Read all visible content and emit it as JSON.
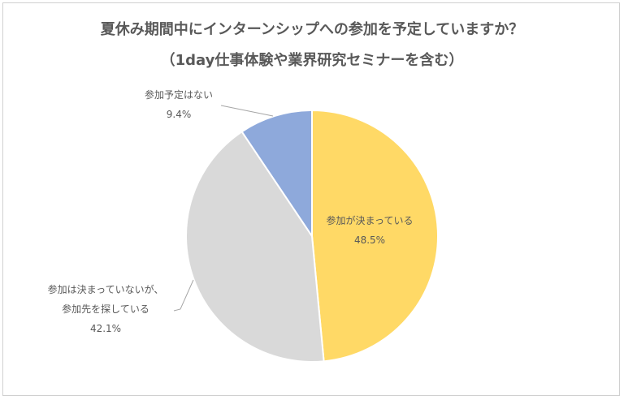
{
  "chart_data": {
    "type": "pie",
    "title": "夏休み期間中にインターンシップへの参加を予定していますか？",
    "subtitle": "（1day仕事体験や業界研究セミナーを含む）",
    "start": "top",
    "direction": "clockwise",
    "slices": [
      {
        "label": "参加が決まっている",
        "label_lines": [
          "参加が決まっている"
        ],
        "value": 48.5,
        "display": "48.5%",
        "color": "#FFD966"
      },
      {
        "label": "参加は決まっていないが、参加先を探している",
        "label_lines": [
          "参加は決まっていないが、",
          "参加先を探している"
        ],
        "value": 42.1,
        "display": "42.1%",
        "color": "#D9D9D9"
      },
      {
        "label": "参加予定はない",
        "label_lines": [
          "参加予定はない"
        ],
        "value": 9.4,
        "display": "9.4%",
        "color": "#8EA9DB"
      }
    ]
  }
}
